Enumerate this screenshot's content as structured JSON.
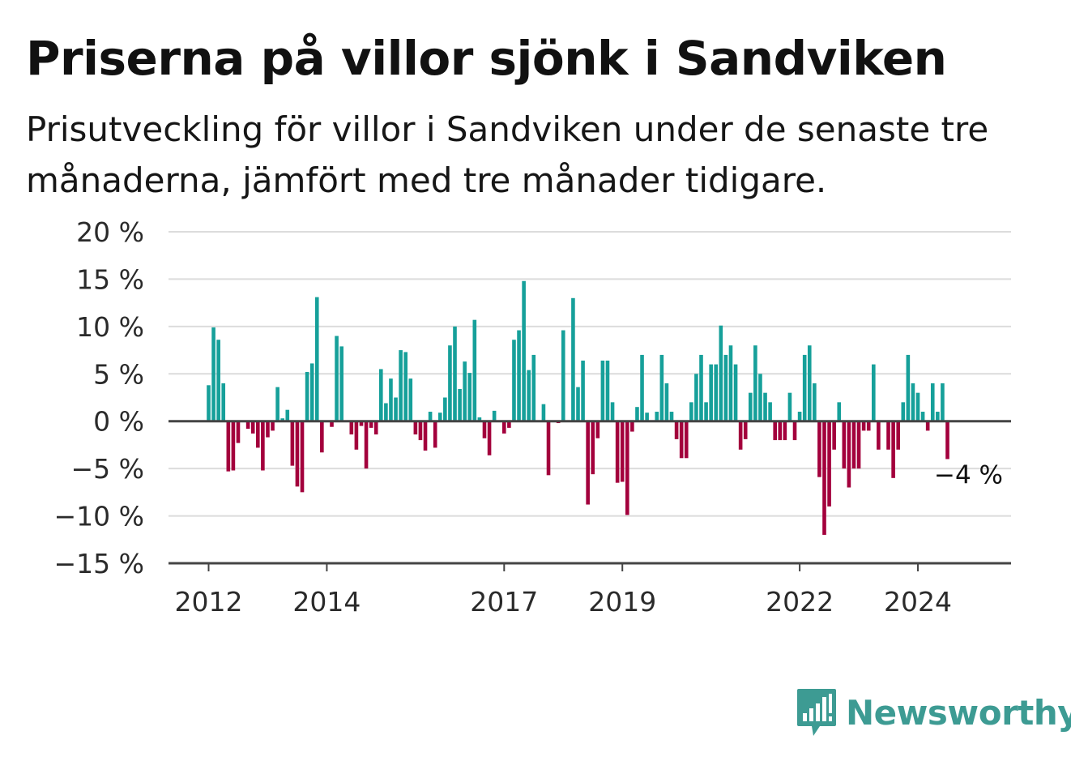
{
  "title": "Priserna på villor sjönk i Sandviken",
  "subtitle": "Prisutveckling för villor i Sandviken under de senaste tre månaderna, jämfört med tre månader tidigare.",
  "brand": {
    "name": "Newsworthy",
    "icon": "newsworthy-logo-icon",
    "color": "#3d9b93"
  },
  "chart_data": {
    "type": "bar",
    "title": "Priserna på villor sjönk i Sandviken",
    "subtitle": "Prisutveckling för villor i Sandviken under de senaste tre månaderna, jämfört med tre månader tidigare.",
    "xlabel": "",
    "ylabel": "",
    "unit": "%",
    "x_start": "2012-01",
    "x_end": "2024-12",
    "frequency": "monthly",
    "ylim": [
      -15,
      20
    ],
    "yticks": [
      20,
      15,
      10,
      5,
      0,
      -5,
      -10,
      -15
    ],
    "ytick_labels": [
      "20 %",
      "15 %",
      "10 %",
      "5 %",
      "0 %",
      "−5 %",
      "−10 %",
      "−15 %"
    ],
    "xtick_labels": [
      "2012",
      "2014",
      "2017",
      "2019",
      "2022",
      "2024"
    ],
    "xtick_months": [
      "2012-01",
      "2014-01",
      "2017-01",
      "2019-01",
      "2022-01",
      "2024-01"
    ],
    "grid": true,
    "legend": "none",
    "colors": {
      "positive": "#16a09a",
      "negative": "#a3003c",
      "grid": "#dcdcdc",
      "axis": "#444444"
    },
    "annotation": {
      "text": "−4 %",
      "value": -4
    },
    "values": [
      3.8,
      9.9,
      8.6,
      4.0,
      -5.3,
      -5.2,
      -2.3,
      0,
      -0.8,
      -1.3,
      -2.8,
      -5.2,
      -1.7,
      -1.0,
      3.6,
      0.3,
      1.2,
      -4.7,
      -6.9,
      -7.5,
      5.2,
      6.1,
      13.1,
      -3.3,
      0,
      -0.6,
      9.0,
      7.9,
      0,
      -1.4,
      -3.0,
      -0.5,
      -5.0,
      -0.7,
      -1.4,
      5.5,
      1.9,
      4.5,
      2.5,
      7.5,
      7.3,
      4.5,
      -1.4,
      -2.0,
      -3.1,
      1.0,
      -2.8,
      0.9,
      2.5,
      8.0,
      10.0,
      3.4,
      6.3,
      5.1,
      10.7,
      0.4,
      -1.8,
      -3.6,
      1.1,
      0,
      -1.3,
      -0.7,
      8.6,
      9.6,
      14.8,
      5.4,
      7.0,
      0,
      1.8,
      -5.7,
      0,
      -0.2,
      9.6,
      0,
      13.0,
      3.6,
      6.4,
      -8.8,
      -5.6,
      -1.8,
      6.4,
      6.4,
      2.0,
      -6.5,
      -6.4,
      -9.9,
      -1.1,
      1.5,
      7.0,
      0.9,
      0,
      1.0,
      7.0,
      4.0,
      1.0,
      -1.9,
      -3.9,
      -3.9,
      2.0,
      5.0,
      7.0,
      2.0,
      6.0,
      6.0,
      10.1,
      7.0,
      8.0,
      6.0,
      -3.0,
      -1.9,
      3.0,
      8.0,
      5.0,
      3.0,
      2.0,
      -2.0,
      -2.0,
      -2.0,
      3.0,
      -2.0,
      1.0,
      7.0,
      8.0,
      4.0,
      -5.9,
      -12.0,
      -9.0,
      -3.0,
      2.0,
      -5.0,
      -7.0,
      -5.0,
      -5.0,
      -1.0,
      -1.0,
      6.0,
      -3.0,
      0,
      -3.0,
      -6.0,
      -3.0,
      2.0,
      7.0,
      4.0,
      3.0,
      1.0,
      -1.0,
      4.0,
      1.0,
      4.0,
      -4.0
    ]
  }
}
